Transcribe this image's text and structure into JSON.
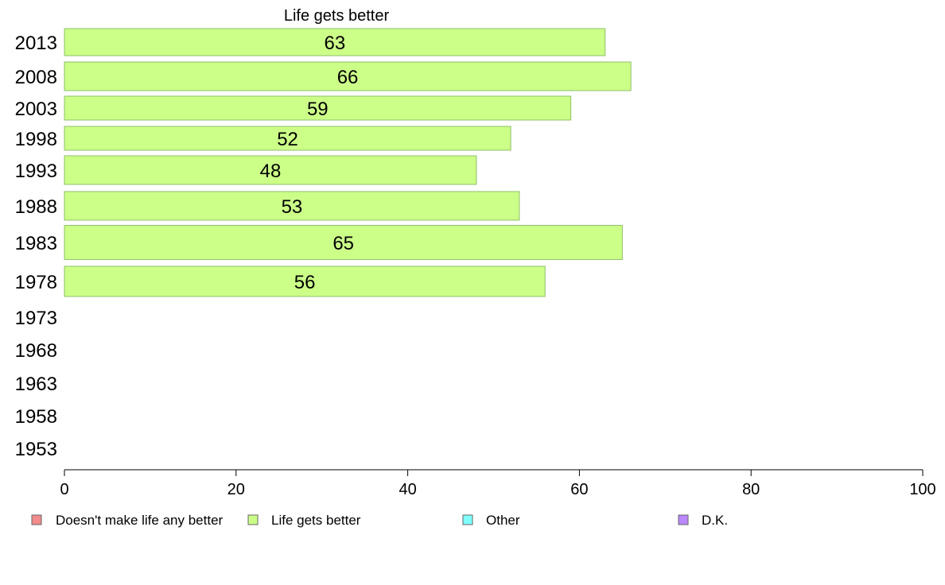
{
  "chart_data": {
    "type": "bar",
    "orientation": "horizontal",
    "title": "Life gets better",
    "categories": [
      "2013",
      "2008",
      "2003",
      "1998",
      "1993",
      "1988",
      "1983",
      "1978",
      "1973",
      "1968",
      "1963",
      "1958",
      "1953"
    ],
    "series": [
      {
        "name": "Life gets better",
        "color": "#ccff88",
        "values": [
          63,
          66,
          59,
          52,
          48,
          53,
          65,
          56,
          null,
          null,
          null,
          null,
          null
        ]
      }
    ],
    "xlim": [
      0,
      100
    ],
    "xticks": [
      0,
      20,
      40,
      60,
      80,
      100
    ],
    "grid": false,
    "legend_position": "bottom"
  },
  "legend": [
    {
      "label": "Doesn't make life any better",
      "color": "#f28b8b"
    },
    {
      "label": "Life gets better",
      "color": "#ccff88"
    },
    {
      "label": "Other",
      "color": "#80ffff"
    },
    {
      "label": "D.K.",
      "color": "#bb88ff"
    }
  ]
}
